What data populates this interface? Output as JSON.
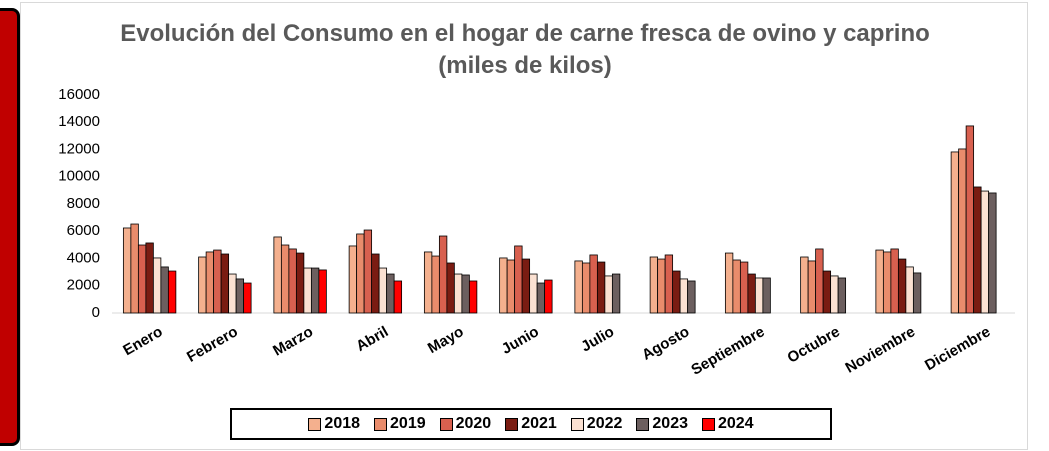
{
  "chart_data": {
    "type": "bar",
    "title": "Evolución del Consumo en el hogar de carne fresca de ovino y caprino (miles de kilos)",
    "categories": [
      "Enero",
      "Febrero",
      "Marzo",
      "Abril",
      "Mayo",
      "Junio",
      "Julio",
      "Agosto",
      "Septiembre",
      "Octubre",
      "Noviembre",
      "Diciembre"
    ],
    "series": [
      {
        "name": "2018",
        "color": "#f4b08e",
        "values": [
          6240,
          4110,
          5580,
          4920,
          4480,
          4040,
          3820,
          4110,
          4400,
          4110,
          4620,
          11820
        ]
      },
      {
        "name": "2019",
        "color": "#e98c6c",
        "values": [
          6530,
          4480,
          4990,
          5800,
          4180,
          3890,
          3670,
          3960,
          3890,
          3820,
          4480,
          12040
        ]
      },
      {
        "name": "2020",
        "color": "#d8604f",
        "values": [
          4990,
          4620,
          4700,
          6090,
          5650,
          4920,
          4260,
          4260,
          3740,
          4700,
          4700,
          13730
        ]
      },
      {
        "name": "2021",
        "color": "#7a1c12",
        "values": [
          5140,
          4330,
          4400,
          4330,
          3670,
          3960,
          3740,
          3080,
          2860,
          3080,
          3960,
          9250
        ]
      },
      {
        "name": "2022",
        "color": "#fbe1d2",
        "values": [
          4040,
          2860,
          3300,
          3300,
          2860,
          2860,
          2720,
          2500,
          2570,
          2720,
          3380,
          8950
        ]
      },
      {
        "name": "2023",
        "color": "#6c5f5f",
        "values": [
          3380,
          2500,
          3300,
          2860,
          2790,
          2200,
          2860,
          2350,
          2570,
          2570,
          2940,
          8810
        ]
      },
      {
        "name": "2024",
        "color": "#ff0000",
        "values": [
          3080,
          2200,
          3160,
          2350,
          2350,
          2420,
          null,
          null,
          null,
          null,
          null,
          null
        ]
      }
    ],
    "ylim": [
      0,
      16000
    ],
    "yticks": [
      0,
      2000,
      4000,
      6000,
      8000,
      10000,
      12000,
      14000,
      16000
    ],
    "grid": false,
    "legend": "bottom"
  }
}
